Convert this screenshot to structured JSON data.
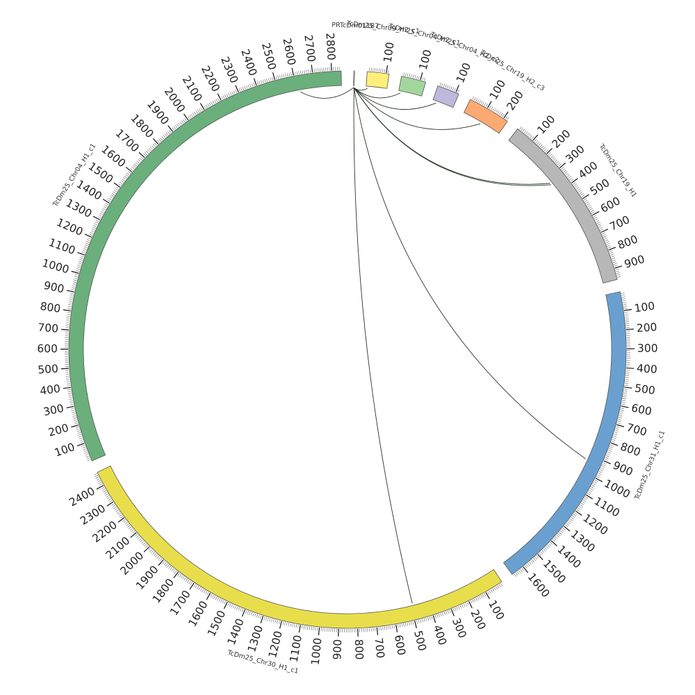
{
  "diagram": {
    "type": "circos",
    "segments": [
      {
        "id": "pr",
        "label": "PRTcDm01187",
        "length": 4,
        "color": "#ffffff",
        "majors": []
      },
      {
        "id": "chr09",
        "label": "TcDm25_Chr09_H2_c1",
        "length": 115,
        "color": "#ffef7a",
        "majors": [
          100
        ]
      },
      {
        "id": "chr04b",
        "label": "TcDm25_Chr04_H2_c1",
        "length": 130,
        "color": "#a3d69d",
        "majors": [
          100
        ]
      },
      {
        "id": "chr04c",
        "label": "TcDm25_Chr04_H2_c2",
        "length": 118,
        "color": "#bdb8dc",
        "majors": [
          100
        ]
      },
      {
        "id": "chr19b",
        "label": "TcDm25_Chr19_H2_c3",
        "length": 225,
        "color": "#fcaa72",
        "majors": [
          100,
          200
        ]
      },
      {
        "id": "chr19",
        "label": "TcDm25_Chr19_H1",
        "length": 960,
        "color": "#b7b7b7",
        "majors": [
          100,
          200,
          300,
          400,
          500,
          600,
          700,
          800,
          900
        ]
      },
      {
        "id": "chr31",
        "label": "TcDm25_Chr31_H1_c1",
        "length": 1670,
        "color": "#6aa0cf",
        "majors": [
          100,
          200,
          300,
          400,
          500,
          600,
          700,
          800,
          900,
          1000,
          1100,
          1200,
          1300,
          1400,
          1500,
          1600
        ]
      },
      {
        "id": "chr30",
        "label": "TcDm25_Chr30_H1_c1",
        "length": 2475,
        "color": "#e8de4b",
        "majors": [
          100,
          200,
          300,
          400,
          500,
          600,
          700,
          800,
          900,
          1000,
          1100,
          1200,
          1300,
          1400,
          1500,
          1600,
          1700,
          1800,
          1900,
          2000,
          2100,
          2200,
          2300,
          2400
        ]
      },
      {
        "id": "chr04",
        "label": "TcDm25_Chr04_H1_c1",
        "length": 2850,
        "color": "#6aaf7c",
        "majors": [
          100,
          200,
          300,
          400,
          500,
          600,
          700,
          800,
          900,
          1000,
          1100,
          1200,
          1300,
          1400,
          1500,
          1600,
          1700,
          1800,
          1900,
          2000,
          2100,
          2200,
          2300,
          2400,
          2500,
          2600,
          2700,
          2800
        ]
      }
    ],
    "links": [
      {
        "from": [
          "pr",
          1
        ],
        "to": [
          "chr04",
          2620
        ]
      },
      {
        "from": [
          "pr",
          1
        ],
        "to": [
          "chr09",
          8
        ]
      },
      {
        "from": [
          "pr",
          2
        ],
        "to": [
          "chr04b",
          12
        ]
      },
      {
        "from": [
          "pr",
          2
        ],
        "to": [
          "chr04c",
          22
        ]
      },
      {
        "from": [
          "pr",
          2
        ],
        "to": [
          "chr19b",
          110
        ]
      },
      {
        "from": [
          "pr",
          3
        ],
        "to": [
          "chr19",
          330
        ]
      },
      {
        "from": [
          "pr",
          3
        ],
        "to": [
          "chr19",
          340
        ]
      },
      {
        "from": [
          "pr",
          3
        ],
        "to": [
          "chr31",
          930
        ]
      },
      {
        "from": [
          "pr",
          3
        ],
        "to": [
          "chr30",
          490
        ]
      }
    ]
  }
}
